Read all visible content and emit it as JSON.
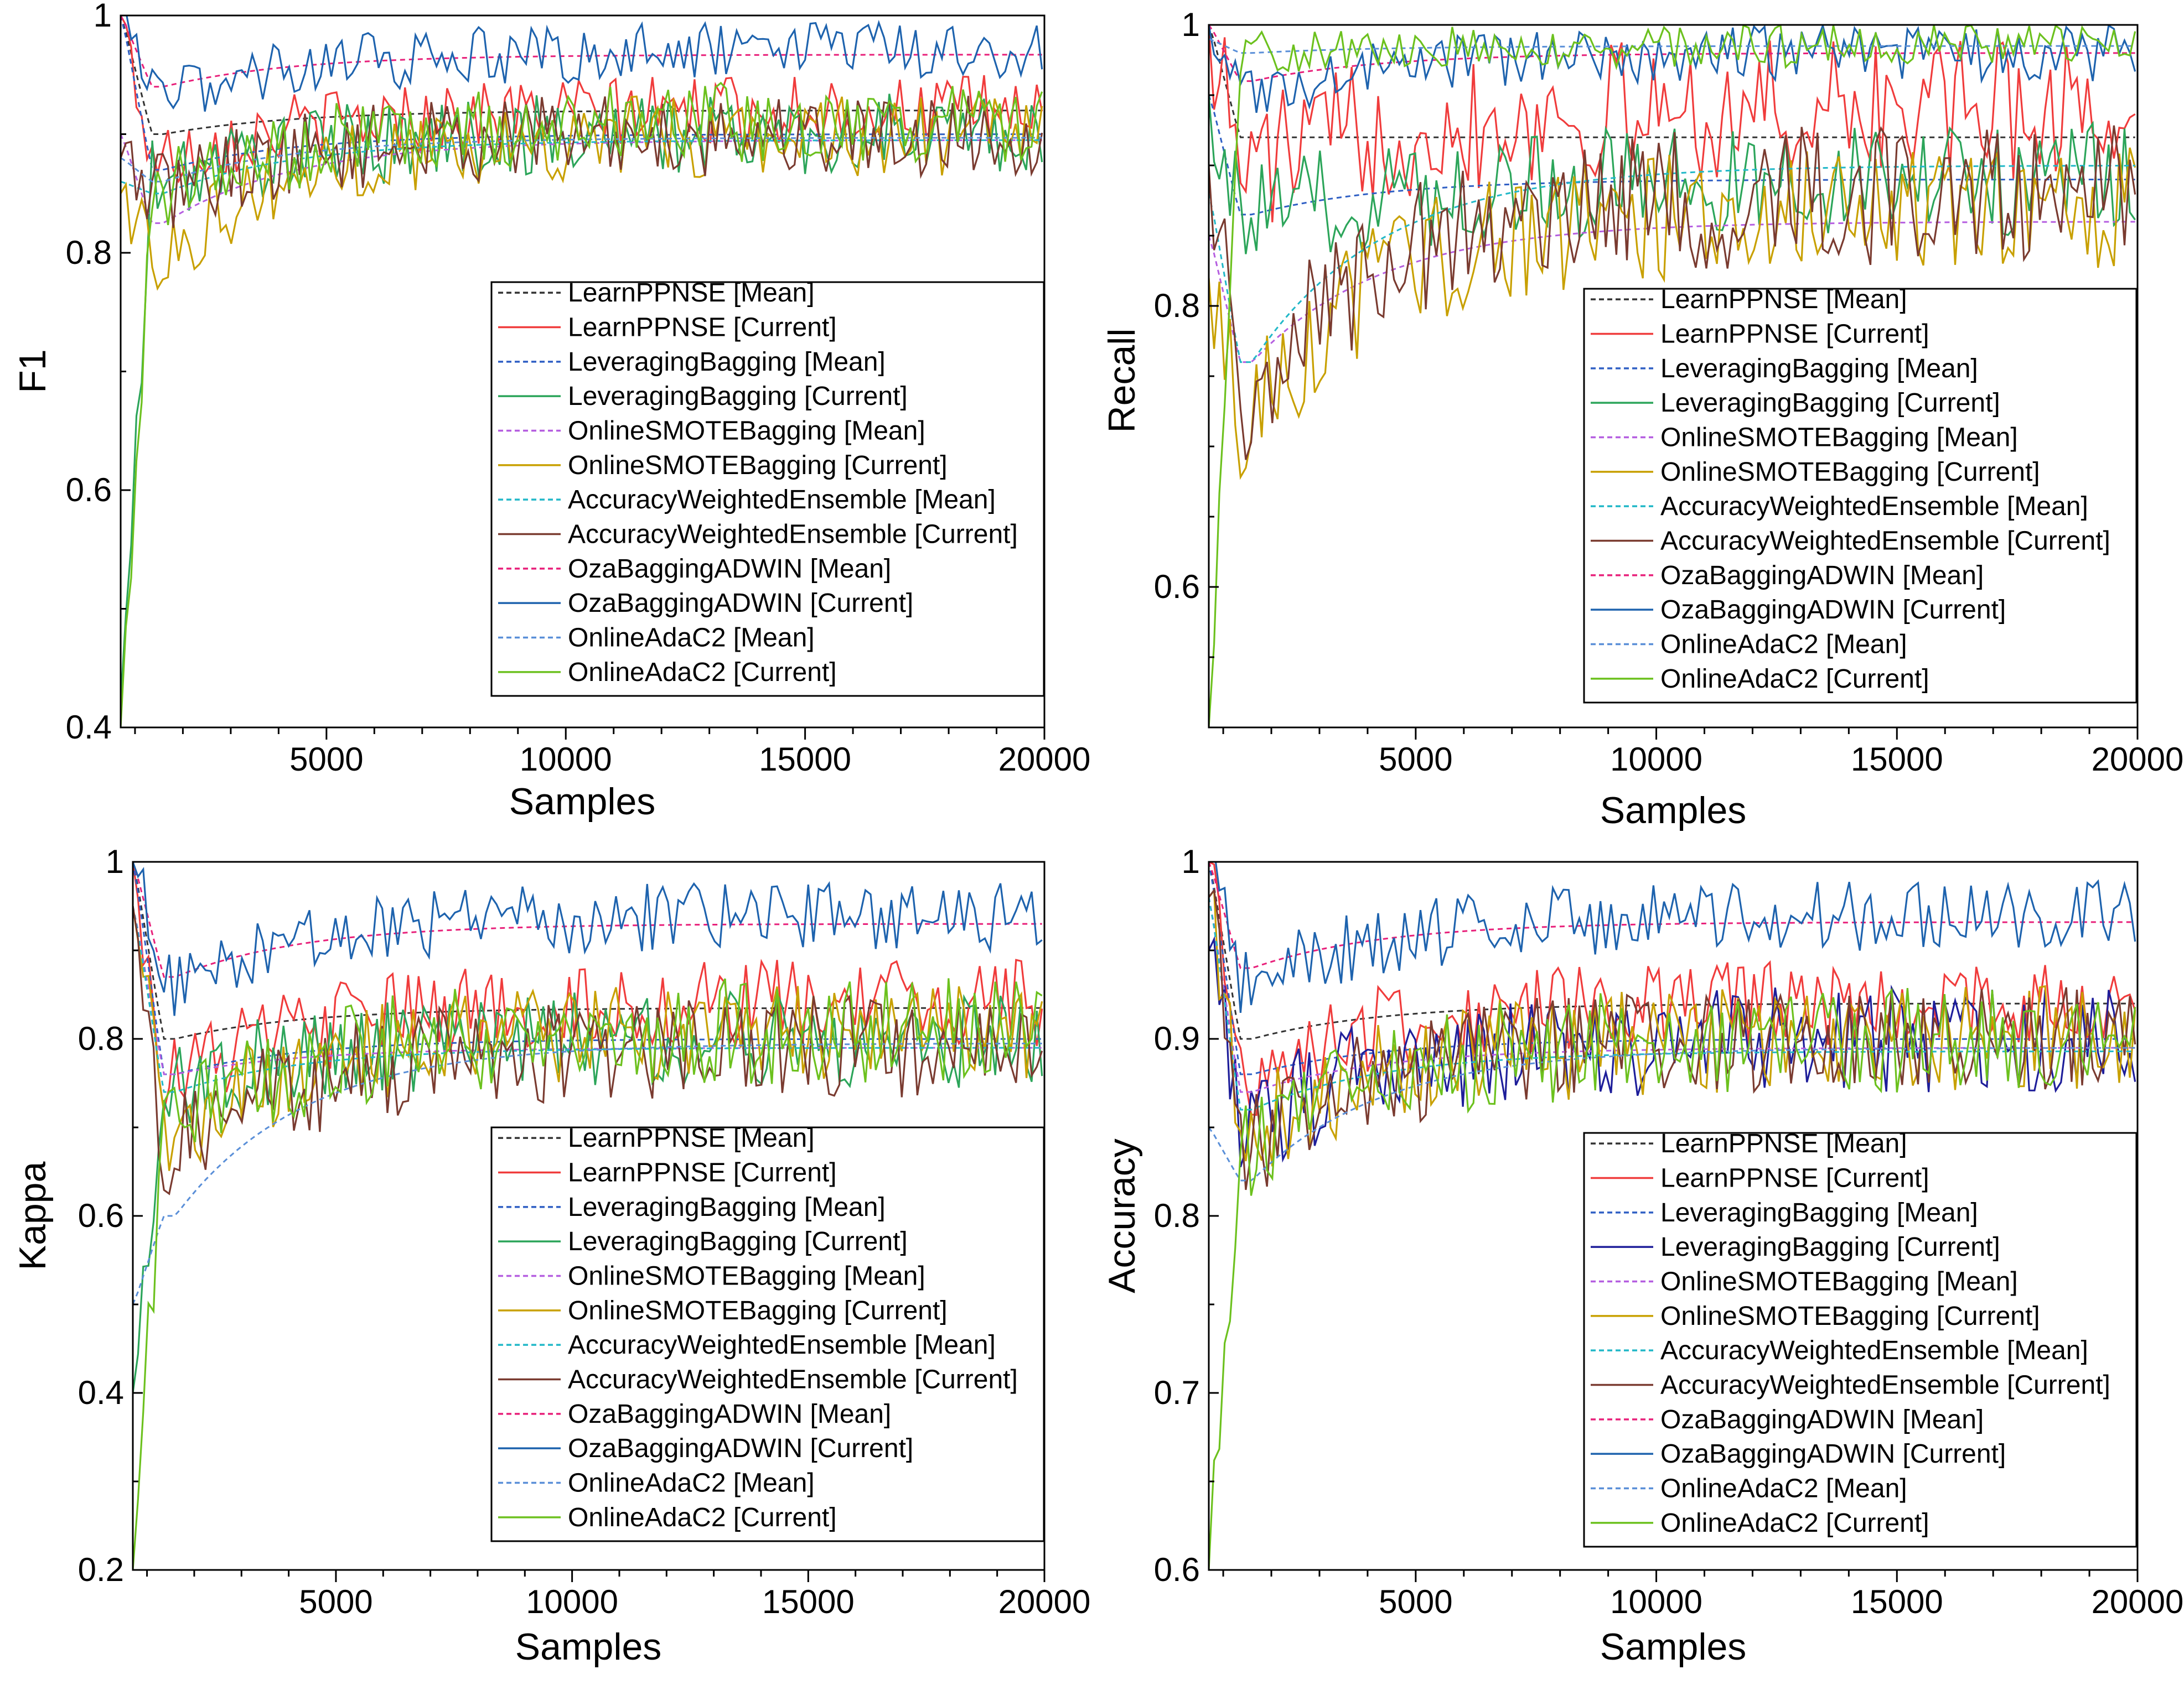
{
  "legend_order": [
    "LearnPPNSE [Mean]",
    "LearnPPNSE [Current]",
    "LeveragingBagging [Mean]",
    "LeveragingBagging [Current]",
    "OnlineSMOTEBagging [Mean]",
    "OnlineSMOTEBagging [Current]",
    "AccuracyWeightedEnsemble [Mean]",
    "AccuracyWeightedEnsemble [Current]",
    "OzaBaggingADWIN [Mean]",
    "OzaBaggingADWIN [Current]",
    "OnlineAdaC2 [Mean]",
    "OnlineAdaC2 [Current]"
  ],
  "series_colors": {
    "LearnPPNSE [Mean]": "#333333",
    "LearnPPNSE [Current]": "#f03c3c",
    "LeveragingBagging [Mean]": "#2f5fc4",
    "LeveragingBagging [Current]": "#2ca55a",
    "OnlineSMOTEBagging [Mean]": "#b55ee0",
    "OnlineSMOTEBagging [Current]": "#c8a000",
    "AccuracyWeightedEnsemble [Mean]": "#22b8c8",
    "AccuracyWeightedEnsemble [Current]": "#7a3b30",
    "OzaBaggingADWIN [Mean]": "#e8207a",
    "OzaBaggingADWIN [Current]": "#1e63ae",
    "OnlineAdaC2 [Mean]": "#5a8fd8",
    "OnlineAdaC2 [Current]": "#6cc11e"
  },
  "accuracy_leveraging_current_color": "#1e1e9a",
  "chart_data": [
    {
      "type": "line",
      "panel": "top-left",
      "title": "",
      "xlabel": "Samples",
      "ylabel": "F1",
      "xlim": [
        700,
        20000
      ],
      "ylim": [
        0.4,
        1.0
      ],
      "xticks": [
        "5000",
        "10000",
        "15000",
        "20000"
      ],
      "yticks": [
        "0.4",
        "0.6",
        "0.8",
        "1"
      ],
      "legend_position": "center-right",
      "series": [
        {
          "name": "LearnPPNSE [Mean]",
          "start": 1.0,
          "dip": 0.9,
          "plateau": 0.92,
          "noise": 0.0
        },
        {
          "name": "LearnPPNSE [Current]",
          "start": 1.0,
          "dip": 0.88,
          "plateau": 0.92,
          "noise": 0.03
        },
        {
          "name": "LeveragingBagging [Mean]",
          "start": 1.0,
          "dip": 0.87,
          "plateau": 0.9,
          "noise": 0.0
        },
        {
          "name": "LeveragingBagging [Current]",
          "start": 0.42,
          "dip": 0.86,
          "plateau": 0.9,
          "noise": 0.035
        },
        {
          "name": "OnlineSMOTEBagging [Mean]",
          "start": 0.9,
          "dip": 0.825,
          "plateau": 0.895,
          "noise": 0.0
        },
        {
          "name": "OnlineSMOTEBagging [Current]",
          "start": 0.85,
          "dip": 0.8,
          "plateau": 0.9,
          "noise": 0.035
        },
        {
          "name": "AccuracyWeightedEnsemble [Mean]",
          "start": 0.86,
          "dip": 0.85,
          "plateau": 0.895,
          "noise": 0.0
        },
        {
          "name": "AccuracyWeightedEnsemble [Current]",
          "start": 0.88,
          "dip": 0.85,
          "plateau": 0.9,
          "noise": 0.035
        },
        {
          "name": "OzaBaggingADWIN [Mean]",
          "start": 1.0,
          "dip": 0.94,
          "plateau": 0.967,
          "noise": 0.0
        },
        {
          "name": "OzaBaggingADWIN [Current]",
          "start": 1.0,
          "dip": 0.93,
          "plateau": 0.97,
          "noise": 0.025
        },
        {
          "name": "OnlineAdaC2 [Mean]",
          "start": 0.88,
          "dip": 0.86,
          "plateau": 0.897,
          "noise": 0.0
        },
        {
          "name": "OnlineAdaC2 [Current]",
          "start": 0.4,
          "dip": 0.85,
          "plateau": 0.91,
          "noise": 0.035
        }
      ]
    },
    {
      "type": "line",
      "panel": "top-right",
      "title": "",
      "xlabel": "Samples",
      "ylabel": "Recall",
      "xlim": [
        700,
        20000
      ],
      "ylim": [
        0.5,
        1.0
      ],
      "xticks": [
        "5000",
        "10000",
        "15000",
        "20000"
      ],
      "yticks": [
        "0.6",
        "0.8",
        "1"
      ],
      "legend_position": "center-right",
      "series": [
        {
          "name": "LearnPPNSE [Mean]",
          "start": 1.0,
          "dip": 0.92,
          "plateau": 0.92,
          "noise": 0.0
        },
        {
          "name": "LearnPPNSE [Current]",
          "start": 1.0,
          "dip": 0.9,
          "plateau": 0.94,
          "noise": 0.05
        },
        {
          "name": "LeveragingBagging [Mean]",
          "start": 0.95,
          "dip": 0.865,
          "plateau": 0.89,
          "noise": 0.0
        },
        {
          "name": "LeveragingBagging [Current]",
          "start": 0.95,
          "dip": 0.86,
          "plateau": 0.89,
          "noise": 0.04
        },
        {
          "name": "OnlineSMOTEBagging [Mean]",
          "start": 0.85,
          "dip": 0.76,
          "plateau": 0.86,
          "noise": 0.0
        },
        {
          "name": "OnlineSMOTEBagging [Current]",
          "start": 0.82,
          "dip": 0.72,
          "plateau": 0.87,
          "noise": 0.045
        },
        {
          "name": "AccuracyWeightedEnsemble [Mean]",
          "start": 0.88,
          "dip": 0.76,
          "plateau": 0.9,
          "noise": 0.0
        },
        {
          "name": "AccuracyWeightedEnsemble [Current]",
          "start": 0.9,
          "dip": 0.74,
          "plateau": 0.88,
          "noise": 0.05
        },
        {
          "name": "OzaBaggingADWIN [Mean]",
          "start": 1.0,
          "dip": 0.96,
          "plateau": 0.98,
          "noise": 0.0
        },
        {
          "name": "OzaBaggingADWIN [Current]",
          "start": 1.0,
          "dip": 0.95,
          "plateau": 0.98,
          "noise": 0.02
        },
        {
          "name": "OnlineAdaC2 [Mean]",
          "start": 0.99,
          "dip": 0.98,
          "plateau": 0.985,
          "noise": 0.0
        },
        {
          "name": "OnlineAdaC2 [Current]",
          "start": 0.5,
          "dip": 0.98,
          "plateau": 0.985,
          "noise": 0.015
        }
      ]
    },
    {
      "type": "line",
      "panel": "bottom-left",
      "title": "",
      "xlabel": "Samples",
      "ylabel": "Kappa",
      "xlim": [
        700,
        20000
      ],
      "ylim": [
        0.2,
        1.0
      ],
      "xticks": [
        "5000",
        "10000",
        "15000",
        "20000"
      ],
      "yticks": [
        "0.2",
        "0.4",
        "0.6",
        "0.8",
        "1"
      ],
      "legend_position": "center-right",
      "series": [
        {
          "name": "LearnPPNSE [Mean]",
          "start": 1.0,
          "dip": 0.8,
          "plateau": 0.835,
          "noise": 0.0
        },
        {
          "name": "LearnPPNSE [Current]",
          "start": 1.0,
          "dip": 0.76,
          "plateau": 0.84,
          "noise": 0.05
        },
        {
          "name": "LeveragingBagging [Mean]",
          "start": 1.0,
          "dip": 0.76,
          "plateau": 0.8,
          "noise": 0.0
        },
        {
          "name": "LeveragingBagging [Current]",
          "start": 0.4,
          "dip": 0.74,
          "plateau": 0.8,
          "noise": 0.055
        },
        {
          "name": "OnlineSMOTEBagging [Mean]",
          "start": 0.95,
          "dip": 0.76,
          "plateau": 0.79,
          "noise": 0.0
        },
        {
          "name": "OnlineSMOTEBagging [Current]",
          "start": 0.95,
          "dip": 0.69,
          "plateau": 0.81,
          "noise": 0.055
        },
        {
          "name": "AccuracyWeightedEnsemble [Mean]",
          "start": 0.95,
          "dip": 0.74,
          "plateau": 0.79,
          "noise": 0.0
        },
        {
          "name": "AccuracyWeightedEnsemble [Current]",
          "start": 0.95,
          "dip": 0.68,
          "plateau": 0.79,
          "noise": 0.06
        },
        {
          "name": "OzaBaggingADWIN [Mean]",
          "start": 1.0,
          "dip": 0.87,
          "plateau": 0.93,
          "noise": 0.0
        },
        {
          "name": "OzaBaggingADWIN [Current]",
          "start": 1.0,
          "dip": 0.86,
          "plateau": 0.94,
          "noise": 0.04
        },
        {
          "name": "OnlineAdaC2 [Mean]",
          "start": 0.5,
          "dip": 0.6,
          "plateau": 0.795,
          "noise": 0.0
        },
        {
          "name": "OnlineAdaC2 [Current]",
          "start": 0.2,
          "dip": 0.7,
          "plateau": 0.81,
          "noise": 0.06
        }
      ]
    },
    {
      "type": "line",
      "panel": "bottom-right",
      "title": "",
      "xlabel": "Samples",
      "ylabel": "Accuracy",
      "xlim": [
        700,
        20000
      ],
      "ylim": [
        0.6,
        1.0
      ],
      "xticks": [
        "5000",
        "10000",
        "15000",
        "20000"
      ],
      "yticks": [
        "0.6",
        "0.7",
        "0.8",
        "0.9",
        "1"
      ],
      "legend_position": "center-right",
      "series": [
        {
          "name": "LearnPPNSE [Mean]",
          "start": 1.0,
          "dip": 0.9,
          "plateau": 0.92,
          "noise": 0.0
        },
        {
          "name": "LearnPPNSE [Current]",
          "start": 1.0,
          "dip": 0.88,
          "plateau": 0.92,
          "noise": 0.025
        },
        {
          "name": "LeveragingBagging [Mean]",
          "start": 1.0,
          "dip": 0.88,
          "plateau": 0.9,
          "noise": 0.0
        },
        {
          "name": "LeveragingBagging [Current]",
          "start": 0.95,
          "dip": 0.85,
          "plateau": 0.9,
          "noise": 0.03
        },
        {
          "name": "OnlineSMOTEBagging [Mean]",
          "start": 0.98,
          "dip": 0.87,
          "plateau": 0.895,
          "noise": 0.0
        },
        {
          "name": "OnlineSMOTEBagging [Current]",
          "start": 0.98,
          "dip": 0.85,
          "plateau": 0.9,
          "noise": 0.03
        },
        {
          "name": "AccuracyWeightedEnsemble [Mean]",
          "start": 0.98,
          "dip": 0.86,
          "plateau": 0.893,
          "noise": 0.0
        },
        {
          "name": "AccuracyWeightedEnsemble [Current]",
          "start": 0.98,
          "dip": 0.84,
          "plateau": 0.9,
          "noise": 0.03
        },
        {
          "name": "OzaBaggingADWIN [Mean]",
          "start": 1.0,
          "dip": 0.94,
          "plateau": 0.966,
          "noise": 0.0
        },
        {
          "name": "OzaBaggingADWIN [Current]",
          "start": 1.0,
          "dip": 0.93,
          "plateau": 0.97,
          "noise": 0.02
        },
        {
          "name": "OnlineAdaC2 [Mean]",
          "start": 0.85,
          "dip": 0.82,
          "plateau": 0.895,
          "noise": 0.0
        },
        {
          "name": "OnlineAdaC2 [Current]",
          "start": 0.6,
          "dip": 0.84,
          "plateau": 0.9,
          "noise": 0.03
        }
      ]
    }
  ]
}
